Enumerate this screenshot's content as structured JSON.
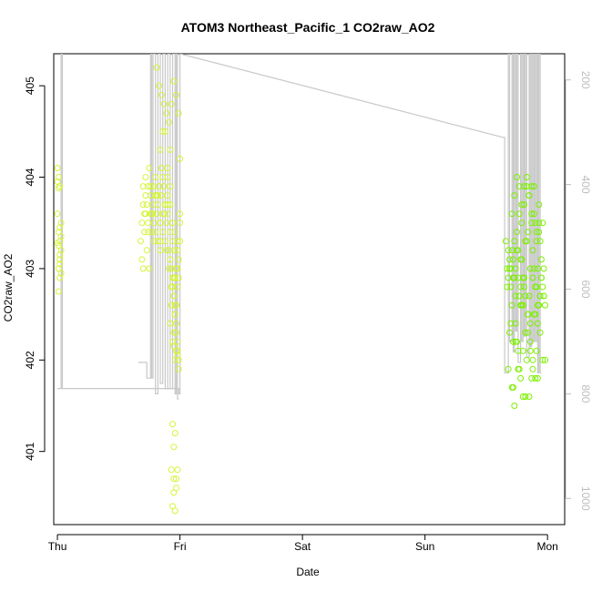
{
  "chart_data": {
    "type": "scatter",
    "title": "ATOM3 Northeast_Pacific_1 CO2raw_AO2",
    "xlabel": "Date",
    "ylabel": "CO2raw_AO2",
    "x_ticks": [
      "Thu",
      "Fri",
      "Sat",
      "Sun",
      "Mon"
    ],
    "ylim": [
      400.2,
      405.35
    ],
    "y_ticks": [
      401,
      402,
      403,
      404,
      405
    ],
    "y2_ticks": [
      200,
      400,
      600,
      800,
      1000
    ],
    "y2lim": [
      1050,
      150
    ],
    "y2_inverted": true,
    "xlim": [
      -0.03,
      4.14
    ],
    "grid": false,
    "colors": {
      "points_early": "#d4f53a",
      "points_late": "#7cf000",
      "secondary_line": "#c8c8c8",
      "axis": "#000000",
      "secondary_axis": "#bdbdbd"
    },
    "series": [
      {
        "kind": "points",
        "color_key": "points_early",
        "x": [
          0.0,
          0.01,
          0.0,
          0.02,
          0.01,
          0.0,
          0.03,
          0.02,
          0.01,
          0.03,
          0.02,
          0.0,
          0.01,
          0.03,
          0.02,
          0.02,
          0.01,
          0.03,
          0.02,
          0.01,
          0.02
        ],
        "y": [
          404.1,
          404.0,
          403.95,
          403.9,
          403.88,
          403.6,
          403.5,
          403.45,
          403.4,
          403.35,
          403.3,
          403.28,
          403.25,
          403.2,
          403.15,
          403.05,
          403.0,
          402.95,
          402.9,
          402.75,
          403.1
        ]
      },
      {
        "kind": "points",
        "color_key": "points_early",
        "x": [
          0.68,
          0.69,
          0.7,
          0.7,
          0.71,
          0.72,
          0.72,
          0.73,
          0.74,
          0.74,
          0.75,
          0.76,
          0.76,
          0.77,
          0.78,
          0.78,
          0.79,
          0.8,
          0.8,
          0.81,
          0.82,
          0.82,
          0.83,
          0.84,
          0.84,
          0.85,
          0.86,
          0.86,
          0.87,
          0.88,
          0.88,
          0.89,
          0.9,
          0.9,
          0.91,
          0.92,
          0.92,
          0.93,
          0.94,
          0.94,
          0.95,
          0.96,
          0.96,
          0.97,
          0.98,
          0.98,
          0.99,
          1.0,
          1.0,
          0.69,
          0.71,
          0.73,
          0.75,
          0.77,
          0.79,
          0.81,
          0.83,
          0.85,
          0.87,
          0.89,
          0.91,
          0.93,
          0.95,
          0.97,
          0.99,
          0.7,
          0.74,
          0.78,
          0.82,
          0.86,
          0.9,
          0.94,
          0.98,
          0.72,
          0.76,
          0.8,
          0.84,
          0.88,
          0.92,
          0.96,
          1.0,
          0.81,
          0.83,
          0.85,
          0.87,
          0.89,
          0.84,
          0.86,
          0.88,
          0.9,
          0.92,
          0.94,
          0.95,
          0.96,
          0.97,
          0.98,
          0.99,
          0.93,
          0.95,
          0.97,
          0.99,
          0.94,
          0.96,
          0.98,
          0.9,
          0.92,
          0.94,
          0.96,
          0.98,
          1.0,
          0.91,
          0.93,
          0.95,
          0.97,
          0.99,
          0.92,
          0.94,
          0.96,
          0.93,
          0.95,
          0.97,
          0.94,
          0.96,
          0.95,
          0.97,
          0.98,
          0.94,
          0.96,
          0.95,
          0.97,
          0.96,
          0.95,
          0.98
        ],
        "y": [
          403.3,
          403.5,
          403.7,
          403.9,
          403.6,
          403.8,
          404.0,
          403.7,
          403.5,
          403.9,
          404.1,
          403.6,
          403.8,
          403.4,
          403.9,
          403.7,
          403.5,
          403.8,
          404.0,
          403.6,
          403.3,
          403.7,
          403.9,
          403.5,
          403.2,
          403.8,
          403.6,
          403.4,
          403.9,
          403.7,
          403.3,
          403.5,
          403.8,
          403.6,
          403.2,
          403.4,
          403.7,
          403.0,
          403.3,
          403.5,
          402.9,
          403.2,
          403.4,
          403.0,
          402.8,
          403.3,
          403.1,
          403.5,
          403.6,
          403.1,
          403.4,
          403.2,
          403.0,
          403.6,
          403.3,
          403.8,
          403.9,
          404.1,
          403.6,
          403.2,
          403.0,
          402.8,
          402.7,
          402.6,
          402.9,
          403.0,
          403.4,
          403.6,
          403.8,
          404.0,
          403.7,
          403.5,
          403.2,
          403.6,
          403.9,
          403.4,
          403.3,
          403.7,
          403.1,
          402.9,
          404.2,
          405.2,
          405.0,
          404.9,
          404.8,
          404.7,
          404.3,
          404.5,
          404.5,
          404.1,
          403.9,
          402.9,
          402.7,
          402.5,
          402.4,
          402.2,
          402.0,
          402.6,
          402.3,
          402.1,
          401.9,
          402.8,
          402.5,
          402.1,
          404.0,
          404.3,
          402.8,
          402.6,
          403.0,
          403.3,
          404.6,
          404.8,
          405.05,
          404.9,
          404.7,
          402.4,
          402.2,
          402.0,
          400.8,
          400.7,
          400.6,
          400.4,
          400.35,
          400.55,
          400.7,
          400.8,
          401.3,
          401.2,
          401.05,
          402.3,
          402.6,
          402.15,
          402.05
        ]
      },
      {
        "kind": "points",
        "color_key": "points_late",
        "x": [
          3.66,
          3.67,
          3.68,
          3.68,
          3.69,
          3.7,
          3.7,
          3.71,
          3.72,
          3.72,
          3.73,
          3.74,
          3.74,
          3.75,
          3.76,
          3.76,
          3.77,
          3.78,
          3.78,
          3.79,
          3.8,
          3.8,
          3.81,
          3.82,
          3.82,
          3.83,
          3.84,
          3.84,
          3.85,
          3.86,
          3.86,
          3.87,
          3.88,
          3.88,
          3.89,
          3.9,
          3.9,
          3.91,
          3.92,
          3.92,
          3.93,
          3.94,
          3.94,
          3.95,
          3.96,
          3.96,
          3.97,
          3.98,
          3.67,
          3.69,
          3.71,
          3.73,
          3.75,
          3.77,
          3.79,
          3.81,
          3.83,
          3.85,
          3.87,
          3.89,
          3.91,
          3.93,
          3.95,
          3.97,
          3.68,
          3.72,
          3.76,
          3.8,
          3.84,
          3.88,
          3.92,
          3.96,
          3.7,
          3.74,
          3.78,
          3.82,
          3.86,
          3.9,
          3.94,
          3.98,
          3.71,
          3.73,
          3.75,
          3.77,
          3.79,
          3.81,
          3.83,
          3.85,
          3.87,
          3.89,
          3.91,
          3.93,
          3.72,
          3.74,
          3.76,
          3.78,
          3.8,
          3.82,
          3.84,
          3.86,
          3.88,
          3.9,
          3.92,
          3.94,
          3.69,
          3.71,
          3.73,
          3.75,
          3.77,
          3.79,
          3.81,
          3.83,
          3.85,
          3.87,
          3.89,
          3.91,
          3.93,
          3.95,
          3.97
        ],
        "y": [
          403.3,
          403.0,
          402.9,
          403.2,
          403.1,
          402.8,
          403.0,
          403.2,
          402.9,
          403.1,
          403.3,
          402.7,
          403.0,
          403.4,
          402.9,
          403.2,
          403.6,
          402.8,
          403.1,
          403.5,
          402.6,
          402.9,
          403.7,
          403.3,
          402.7,
          403.9,
          403.4,
          402.5,
          403.8,
          403.0,
          402.4,
          403.6,
          403.2,
          402.9,
          403.9,
          403.5,
          402.8,
          403.4,
          403.0,
          402.6,
          403.7,
          403.3,
          402.7,
          403.1,
          403.5,
          402.8,
          403.0,
          402.6,
          402.8,
          403.0,
          402.6,
          402.9,
          403.2,
          402.7,
          403.1,
          402.9,
          403.3,
          402.7,
          403.5,
          403.0,
          402.8,
          403.4,
          402.9,
          402.7,
          401.9,
          401.7,
          402.1,
          401.6,
          402.3,
          401.9,
          401.8,
          402.0,
          402.4,
          402.2,
          401.8,
          401.6,
          402.1,
          402.5,
          402.3,
          402.0,
          403.6,
          403.8,
          404.0,
          403.9,
          403.7,
          403.9,
          404.0,
          403.8,
          403.9,
          403.6,
          403.3,
          403.5,
          402.2,
          402.4,
          401.9,
          402.6,
          402.1,
          402.3,
          402.5,
          402.2,
          402.0,
          401.8,
          402.4,
          402.7,
          402.3,
          401.7,
          401.5,
          402.2,
          401.9,
          402.6,
          402.8,
          402.0,
          401.6,
          401.8,
          402.5,
          402.1,
          402.6,
          402.9,
          402.7
        ]
      },
      {
        "kind": "line",
        "color_key": "secondary_line",
        "axis": "right",
        "x": [
          0.0,
          0.03,
          0.03,
          0.04,
          0.04,
          0.99,
          0.99,
          1.0,
          1.0,
          3.64,
          3.65,
          3.65,
          3.68,
          3.68,
          3.69,
          3.69,
          3.71,
          3.71,
          3.72,
          3.72,
          3.73,
          3.73,
          3.74,
          3.74,
          3.75,
          3.75,
          3.76,
          3.76,
          3.78,
          3.78,
          3.79,
          3.79,
          3.8,
          3.8,
          3.81,
          3.81,
          3.82,
          3.82,
          3.83,
          3.83,
          3.85,
          3.85,
          3.86,
          3.86,
          3.87,
          3.87,
          3.88,
          3.88,
          3.89,
          3.89,
          3.9,
          3.9,
          3.91,
          3.91,
          3.92,
          3.92,
          3.93,
          3.93,
          3.94,
          3.94,
          3.95,
          3.95
        ],
        "y": [
          790,
          790,
          150,
          150,
          790,
          790,
          800,
          800,
          150,
          310,
          310,
          760,
          760,
          150,
          150,
          700,
          700,
          150,
          150,
          720,
          720,
          150,
          150,
          680,
          680,
          150,
          150,
          740,
          740,
          150,
          150,
          700,
          700,
          150,
          150,
          690,
          690,
          150,
          150,
          730,
          730,
          150,
          150,
          710,
          710,
          150,
          150,
          700,
          700,
          150,
          150,
          700,
          700,
          150,
          150,
          760,
          760,
          150,
          150,
          760,
          760,
          760
        ]
      },
      {
        "kind": "line",
        "color_key": "secondary_line",
        "axis": "right",
        "x": [
          0.66,
          0.73,
          0.73,
          0.76,
          0.76,
          0.77,
          0.77,
          0.78,
          0.78,
          0.8,
          0.8,
          0.82,
          0.82,
          0.84,
          0.84,
          0.86,
          0.86,
          0.88,
          0.88,
          0.9,
          0.9,
          0.92,
          0.92,
          0.94,
          0.94,
          0.96,
          0.96,
          0.97,
          0.97,
          0.98,
          0.98,
          0.99
        ],
        "y": [
          740,
          740,
          770,
          770,
          150,
          150,
          770,
          770,
          150,
          150,
          800,
          800,
          150,
          150,
          780,
          780,
          150,
          150,
          790,
          790,
          150,
          150,
          790,
          790,
          150,
          150,
          800,
          800,
          150,
          150,
          810,
          810
        ]
      }
    ]
  }
}
